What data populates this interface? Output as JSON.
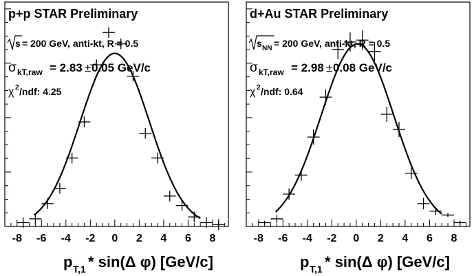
{
  "chart_data": [
    {
      "type": "scatter",
      "title": "p+p  STAR Preliminary",
      "annot_sqrt_tail": " = 200 GeV, anti-kt, R = 0.5",
      "annot_sqrt_var": "s",
      "sigma_sub": "kT,raw",
      "sigma_value": " = 2.83",
      "sigma_pm": "±",
      "sigma_err": " 0.05 GeV/c",
      "chi_label": "/ndf: 4.25",
      "xlabel_main": "p",
      "xlabel_sub": "T,1",
      "xlabel_tail": " * sin(Δ φ) [GeV/c]",
      "xlim": [
        -9,
        9.3
      ],
      "ylim": [
        0,
        1.18
      ],
      "xticks": [
        -8,
        -6,
        -4,
        -2,
        0,
        2,
        4,
        6,
        8
      ],
      "xtick_labels": [
        "-8",
        "-6",
        "-4",
        "-2",
        "0",
        "2",
        "4",
        "6",
        "8"
      ],
      "points": [
        {
          "x": -7.5,
          "y": 0.02
        },
        {
          "x": -6.5,
          "y": 0.04
        },
        {
          "x": -5.5,
          "y": 0.12
        },
        {
          "x": -4.5,
          "y": 0.2
        },
        {
          "x": -3.5,
          "y": 0.36
        },
        {
          "x": -2.5,
          "y": 0.55
        },
        {
          "x": -1.5,
          "y": 0.85
        },
        {
          "x": -0.5,
          "y": 1.02
        },
        {
          "x": 0.5,
          "y": 0.96
        },
        {
          "x": 1.5,
          "y": 0.79
        },
        {
          "x": 2.5,
          "y": 0.49
        },
        {
          "x": 3.5,
          "y": 0.36
        },
        {
          "x": 4.5,
          "y": 0.16
        },
        {
          "x": 5.5,
          "y": 0.11
        },
        {
          "x": 6.5,
          "y": 0.05
        },
        {
          "x": 7.5,
          "y": 0.02
        },
        {
          "x": 8.5,
          "y": 0.01
        }
      ],
      "fit": {
        "mean": 0,
        "sigma": 2.83,
        "amplitude": 0.91,
        "x_range": [
          -6.6,
          7.0
        ]
      }
    },
    {
      "type": "scatter",
      "title": "d+Au  STAR Preliminary",
      "annot_sqrt_tail": " = 200 GeV, anti-kt, R = 0.5",
      "annot_sqrt_var": "s",
      "annot_sqrt_sub": "NN",
      "sigma_sub": "kT,raw",
      "sigma_value": " = 2.98",
      "sigma_pm": "±",
      "sigma_err": " 0.08 GeV/c",
      "chi_label": "/ndf: 0.64",
      "xlabel_main": "p",
      "xlabel_sub": "T,1",
      "xlabel_tail": " * sin(Δ φ) [GeV/c]",
      "xlim": [
        -9,
        9.3
      ],
      "ylim": [
        0,
        1.18
      ],
      "xticks": [
        -8,
        -6,
        -4,
        -2,
        0,
        2,
        4,
        6,
        8
      ],
      "xtick_labels": [
        "-8",
        "-6",
        "-4",
        "-2",
        "0",
        "2",
        "4",
        "6",
        "8"
      ],
      "points": [
        {
          "x": -7.5,
          "y": 0.02
        },
        {
          "x": -6.5,
          "y": 0.04
        },
        {
          "x": -5.5,
          "y": 0.17
        },
        {
          "x": -4.5,
          "y": 0.27
        },
        {
          "x": -3.5,
          "y": 0.47
        },
        {
          "x": -2.5,
          "y": 0.68
        },
        {
          "x": -1.5,
          "y": 0.93
        },
        {
          "x": -0.5,
          "y": 0.97
        },
        {
          "x": 0.5,
          "y": 0.98
        },
        {
          "x": 1.5,
          "y": 0.92
        },
        {
          "x": 2.5,
          "y": 0.59
        },
        {
          "x": 3.5,
          "y": 0.51
        },
        {
          "x": 4.5,
          "y": 0.28
        },
        {
          "x": 5.5,
          "y": 0.12
        },
        {
          "x": 6.5,
          "y": 0.08
        },
        {
          "x": 7.5,
          "y": 0.06
        },
        {
          "x": 8.5,
          "y": 0.02
        }
      ],
      "errors": [
        0.01,
        0.02,
        0.03,
        0.03,
        0.04,
        0.04,
        0.05,
        0.05,
        0.05,
        0.05,
        0.04,
        0.04,
        0.03,
        0.03,
        0.02,
        0.01,
        0.01
      ],
      "fit": {
        "mean": 0.1,
        "sigma": 2.98,
        "amplitude": 0.96,
        "x_range": [
          -6.6,
          7.0
        ]
      }
    }
  ]
}
